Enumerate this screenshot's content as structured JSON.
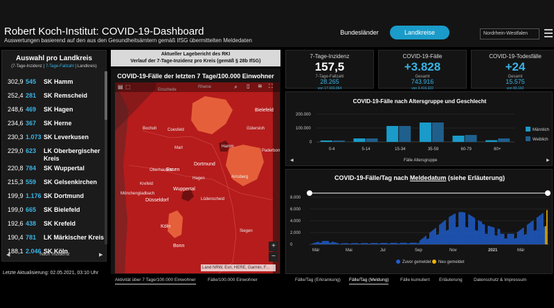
{
  "header": {
    "title": "Robert Koch-Institut: COVID-19-Dashboard",
    "subtitle": "Auswertungen basierend auf den aus den Gesundheitsämtern gemäß IfSG übermittelten Meldedaten",
    "btn_bundeslaender": "Bundesländer",
    "btn_landkreise": "Landkreise",
    "region": "Nordrhein-Westfalen"
  },
  "left": {
    "heading": "Auswahl pro Landkreis",
    "sub_a": "(7-Tage-Inzidenz | ",
    "sub_b": "7-Tage-Fallzahl",
    "sub_c": " | Landkreis)",
    "pager": "nach Inzidenz",
    "rows": [
      {
        "inz": "302,9",
        "faelle": "545",
        "name": "SK Hamm"
      },
      {
        "inz": "252,4",
        "faelle": "281",
        "name": "SK Remscheid"
      },
      {
        "inz": "248,6",
        "faelle": "469",
        "name": "SK Hagen"
      },
      {
        "inz": "234,6",
        "faelle": "367",
        "name": "SK Herne"
      },
      {
        "inz": "230,3",
        "faelle": "1.073",
        "name": "SK Leverkusen"
      },
      {
        "inz": "229,0",
        "faelle": "623",
        "name": "LK Oberbergischer Kreis"
      },
      {
        "inz": "220,8",
        "faelle": "784",
        "name": "SK Wuppertal"
      },
      {
        "inz": "215,3",
        "faelle": "559",
        "name": "SK Gelsenkirchen"
      },
      {
        "inz": "199,9",
        "faelle": "1.176",
        "name": "SK Dortmund"
      },
      {
        "inz": "199,0",
        "faelle": "665",
        "name": "SK Bielefeld"
      },
      {
        "inz": "192,6",
        "faelle": "438",
        "name": "SK Krefeld"
      },
      {
        "inz": "190,4",
        "faelle": "781",
        "name": "LK Märkischer Kreis"
      },
      {
        "inz": "188,1",
        "faelle": "2.046",
        "name": "SK Köln"
      }
    ]
  },
  "updated": "Letzte Aktualisierung: 02.05.2021, 03:10 Uhr",
  "lage": {
    "line1": "Aktueller Lagebericht des RKI",
    "line2": "Verlauf der 7-Tage-Inzidenz pro Kreis (gemäß § 28b IfSG)"
  },
  "map": {
    "title": "COVID-19-Fälle der letzten 7 Tage/100.000 Einwohner",
    "attribution": "Land NRW, Esri, HERE, Garmin, F...",
    "zoom_in": "+",
    "zoom_out": "−",
    "places": [
      "Rheine",
      "Enschede",
      "Bielefeld",
      "Bocholt",
      "Coesfeld",
      "Gütersloh",
      "Marl",
      "Hamm",
      "Paderborn",
      "Dortmund",
      "Oberhausen",
      "Essen",
      "Hagen",
      "Arnsberg",
      "Krefeld",
      "Wuppertal",
      "Mönchengladbach",
      "Düsseldorf",
      "Lüdenscheid",
      "Köln",
      "Siegen",
      "Bonn"
    ],
    "tabs": [
      "Aktivität über 7 Tage/100.000 Einwohner",
      "Fälle/100.000 Einwohner"
    ]
  },
  "kpi": [
    {
      "label": "7-Tage-Inzidenz",
      "value": "157,5",
      "sub": "7-Tage-Fallzahl",
      "sub_value": "28.265",
      "sub_note": "von 17.933.064"
    },
    {
      "label": "COVID-19-Fälle",
      "value": "+3.828",
      "sub": "Gesamt",
      "sub_value": "743.916",
      "sub_note": "von 3.416.322"
    },
    {
      "label": "COVID-19-Todesfälle",
      "value": "+24",
      "sub": "Gesamt",
      "sub_value": "15.575",
      "sub_note": "von 83.192"
    }
  ],
  "age_chart": {
    "title": "COVID-19-Fälle nach Altersgruppe und Geschlecht",
    "xlabel": "Fälle Altersgruppe",
    "yticks": [
      "200.000",
      "100.000",
      "0"
    ],
    "legend": [
      {
        "name": "Männlich",
        "color": "#1a9bc9"
      },
      {
        "name": "Weiblich",
        "color": "#1f5f8b"
      }
    ]
  },
  "chart_data": [
    {
      "type": "bar",
      "title": "COVID-19-Fälle nach Altersgruppe und Geschlecht",
      "categories": [
        "0-4",
        "5-14",
        "15-34",
        "35-59",
        "60-79",
        "80+"
      ],
      "ylim": [
        0,
        200000
      ],
      "series": [
        {
          "name": "Männlich",
          "values": [
            10000,
            25000,
            115000,
            140000,
            45000,
            12000
          ]
        },
        {
          "name": "Weiblich",
          "values": [
            10000,
            25000,
            115000,
            140000,
            50000,
            25000
          ]
        }
      ]
    },
    {
      "type": "area",
      "title": "COVID-19-Fälle/Tag nach Meldedatum (siehe Erläuterung)",
      "xticks": [
        "Mär",
        "Mai",
        "Jul",
        "Sep",
        "Nov",
        "2021",
        "Mär"
      ],
      "yticks": [
        "8.000",
        "6.000",
        "4.000",
        "2.000",
        "0"
      ],
      "ylim": [
        0,
        8000
      ],
      "series": [
        {
          "name": "Zuvor gemeldet",
          "color": "#1f5fd0"
        },
        {
          "name": "Neu gemeldet",
          "color": "#f0b400"
        }
      ]
    }
  ],
  "day_chart": {
    "title_a": "COVID-19-Fälle/Tag nach ",
    "title_b": "Meldedatum",
    "title_c": " (siehe Erläuterung)",
    "legend": [
      "Zuvor gemeldet",
      "Neu gemeldet"
    ]
  },
  "bottom_tabs": [
    "Fälle/Tag (Erkrankung)",
    "Fälle/Tag (Meldung)",
    "Fälle kumuliert",
    "Erläuterung",
    "Datenschutz & Impressum"
  ]
}
